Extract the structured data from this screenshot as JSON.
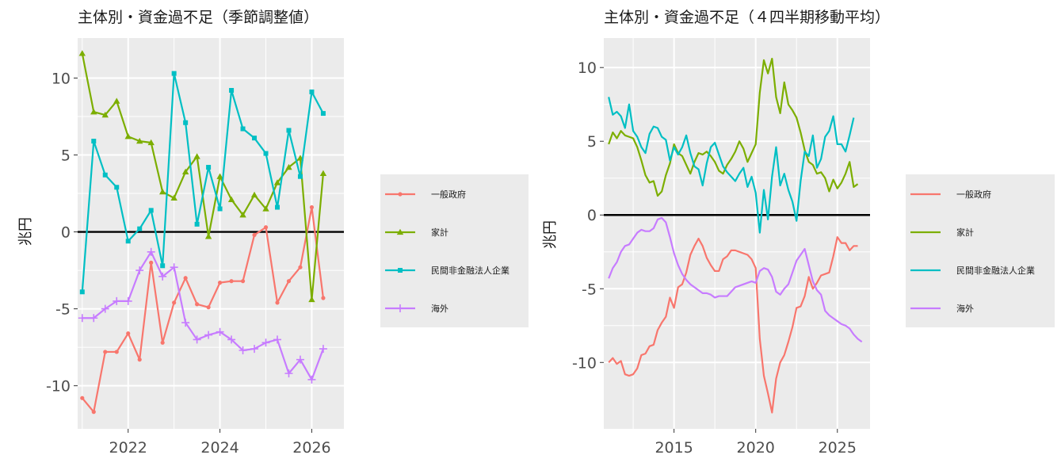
{
  "chart_data": [
    {
      "type": "line",
      "title": "主体別・資金過不足（季節調整値）",
      "ylabel": "兆円",
      "xlabel": "",
      "x_ticks": [
        "2022",
        "2024",
        "2026"
      ],
      "y_ticks": [
        "10",
        "5",
        "0",
        "-5",
        "-10"
      ],
      "xlim": [
        2020.9,
        2026.7
      ],
      "ylim": [
        -12.8,
        12.6
      ],
      "grid": true,
      "zero_line": true,
      "markers": true,
      "legend_position": "right",
      "x": [
        2021.0,
        2021.25,
        2021.5,
        2021.75,
        2022.0,
        2022.25,
        2022.5,
        2022.75,
        2023.0,
        2023.25,
        2023.5,
        2023.75,
        2024.0,
        2024.25,
        2024.5,
        2024.75,
        2025.0,
        2025.25,
        2025.5,
        2025.75,
        2026.0,
        2026.25,
        2026.5
      ],
      "series": [
        {
          "name": "一般政府",
          "color": "#F8766D",
          "marker": "circle",
          "values": [
            -10.8,
            -11.7,
            -7.8,
            -7.8,
            -6.6,
            -8.3,
            -2.0,
            -7.2,
            -4.6,
            -3.0,
            -4.7,
            -4.9,
            -3.3,
            -3.2,
            -3.2,
            -0.2,
            0.3,
            -4.6,
            -3.2,
            -2.3,
            1.6,
            -4.3,
            null
          ]
        },
        {
          "name": "家計",
          "color": "#7CAE00",
          "marker": "triangle",
          "values": [
            11.6,
            7.8,
            7.6,
            8.5,
            6.2,
            5.9,
            5.8,
            2.6,
            2.2,
            3.9,
            4.9,
            -0.3,
            3.6,
            2.1,
            1.1,
            2.4,
            1.5,
            3.2,
            4.2,
            4.8,
            -4.4,
            3.8,
            null
          ]
        },
        {
          "name": "民間非金融法人企業",
          "color": "#00BFC4",
          "marker": "square",
          "values": [
            -3.9,
            5.9,
            3.7,
            2.9,
            -0.6,
            0.2,
            1.4,
            -2.2,
            10.3,
            7.1,
            0.5,
            4.2,
            1.5,
            9.2,
            6.7,
            6.1,
            5.1,
            1.6,
            6.6,
            3.6,
            9.1,
            7.7,
            null
          ]
        },
        {
          "name": "海外",
          "color": "#C77CFF",
          "marker": "plus",
          "values": [
            -5.6,
            -5.6,
            -5.0,
            -4.5,
            -4.5,
            -2.5,
            -1.3,
            -2.9,
            -2.3,
            -5.9,
            -7.0,
            -6.7,
            -6.5,
            -7.0,
            -7.7,
            -7.6,
            -7.2,
            -7.0,
            -9.2,
            -8.3,
            -9.6,
            -7.6,
            null
          ]
        }
      ]
    },
    {
      "type": "line",
      "title": "主体別・資金過不足（４四半期移動平均）",
      "ylabel": "兆円",
      "xlabel": "",
      "x_ticks": [
        "2015",
        "2020",
        "2025"
      ],
      "y_ticks": [
        "10",
        "5",
        "0",
        "-5",
        "-10"
      ],
      "xlim": [
        2010.7,
        2027.0
      ],
      "ylim": [
        -14.5,
        12.0
      ],
      "grid": true,
      "zero_line": true,
      "markers": false,
      "legend_position": "right",
      "x": [
        2011.0,
        2011.25,
        2011.5,
        2011.75,
        2012.0,
        2012.25,
        2012.5,
        2012.75,
        2013.0,
        2013.25,
        2013.5,
        2013.75,
        2014.0,
        2014.25,
        2014.5,
        2014.75,
        2015.0,
        2015.25,
        2015.5,
        2015.75,
        2016.0,
        2016.25,
        2016.5,
        2016.75,
        2017.0,
        2017.25,
        2017.5,
        2017.75,
        2018.0,
        2018.25,
        2018.5,
        2018.75,
        2019.0,
        2019.25,
        2019.5,
        2019.75,
        2020.0,
        2020.25,
        2020.5,
        2020.75,
        2021.0,
        2021.25,
        2021.5,
        2021.75,
        2022.0,
        2022.25,
        2022.5,
        2022.75,
        2023.0,
        2023.25,
        2023.5,
        2023.75,
        2024.0,
        2024.25,
        2024.5,
        2024.75,
        2025.0,
        2025.25,
        2025.5,
        2025.75,
        2026.0,
        2026.25,
        2026.5
      ],
      "series": [
        {
          "name": "一般政府",
          "color": "#F8766D",
          "values": [
            -10.0,
            -9.7,
            -10.1,
            -9.9,
            -10.8,
            -10.9,
            -10.8,
            -10.4,
            -9.5,
            -9.4,
            -8.9,
            -8.8,
            -7.8,
            -7.3,
            -6.9,
            -5.6,
            -6.3,
            -4.9,
            -4.7,
            -3.9,
            -2.7,
            -2.1,
            -1.6,
            -2.1,
            -2.9,
            -3.4,
            -3.8,
            -3.8,
            -3.0,
            -2.8,
            -2.4,
            -2.4,
            -2.5,
            -2.6,
            -2.7,
            -3.0,
            -3.6,
            -8.4,
            -10.9,
            -12.1,
            -13.4,
            -11.1,
            -10.0,
            -9.5,
            -8.6,
            -7.6,
            -6.3,
            -6.2,
            -5.5,
            -4.2,
            -5.0,
            -4.6,
            -4.1,
            -4.0,
            -3.9,
            -2.8,
            -1.5,
            -1.9,
            -1.9,
            -2.4,
            -2.1,
            -2.1,
            null
          ]
        },
        {
          "name": "家計",
          "color": "#7CAE00",
          "values": [
            4.8,
            5.6,
            5.2,
            5.7,
            5.4,
            5.3,
            5.2,
            4.6,
            3.7,
            2.7,
            2.2,
            2.3,
            1.3,
            1.6,
            2.7,
            3.5,
            4.8,
            4.2,
            4.0,
            3.4,
            2.8,
            3.6,
            4.2,
            4.1,
            4.3,
            4.0,
            3.6,
            3.0,
            2.8,
            3.4,
            3.8,
            4.3,
            5.0,
            4.5,
            3.6,
            4.2,
            4.8,
            8.3,
            10.5,
            9.6,
            10.6,
            8.0,
            6.9,
            9.0,
            7.5,
            7.1,
            6.6,
            5.6,
            4.4,
            3.6,
            3.4,
            2.8,
            2.9,
            2.5,
            1.6,
            2.4,
            1.8,
            2.2,
            2.8,
            3.6,
            1.9,
            2.1,
            null
          ]
        },
        {
          "name": "民間非金融法人企業",
          "color": "#00BFC4",
          "values": [
            8.0,
            6.8,
            7.0,
            6.7,
            5.9,
            7.5,
            5.7,
            5.3,
            4.6,
            4.2,
            5.5,
            6.0,
            5.9,
            5.3,
            5.1,
            3.7,
            4.6,
            4.1,
            4.6,
            5.4,
            4.2,
            3.3,
            3.1,
            2.0,
            3.5,
            4.6,
            4.9,
            4.1,
            3.3,
            2.9,
            2.6,
            2.3,
            2.8,
            3.2,
            1.9,
            2.6,
            1.5,
            -1.2,
            1.7,
            -0.3,
            2.6,
            4.6,
            2.0,
            2.8,
            1.7,
            0.9,
            -0.4,
            2.3,
            4.3,
            4.0,
            5.4,
            3.2,
            3.8,
            5.3,
            5.7,
            6.7,
            4.8,
            4.8,
            4.3,
            5.4,
            6.6,
            null,
            null
          ]
        },
        {
          "name": "海外",
          "color": "#C77CFF",
          "values": [
            -4.3,
            -3.6,
            -3.2,
            -2.5,
            -2.1,
            -2.0,
            -1.6,
            -1.2,
            -1.0,
            -1.1,
            -1.1,
            -0.9,
            -0.3,
            -0.2,
            -0.5,
            -1.5,
            -2.6,
            -3.4,
            -4.0,
            -4.4,
            -4.7,
            -4.9,
            -5.1,
            -5.3,
            -5.3,
            -5.4,
            -5.6,
            -5.5,
            -5.5,
            -5.5,
            -5.2,
            -4.9,
            -4.8,
            -4.7,
            -4.6,
            -4.5,
            -4.6,
            -3.8,
            -3.6,
            -3.7,
            -4.2,
            -5.2,
            -5.4,
            -5.0,
            -4.7,
            -3.9,
            -3.1,
            -2.7,
            -2.3,
            -3.4,
            -4.5,
            -5.1,
            -5.4,
            -6.5,
            -6.8,
            -7.0,
            -7.2,
            -7.4,
            -7.5,
            -7.7,
            -8.1,
            -8.4,
            -8.6
          ]
        }
      ]
    }
  ]
}
